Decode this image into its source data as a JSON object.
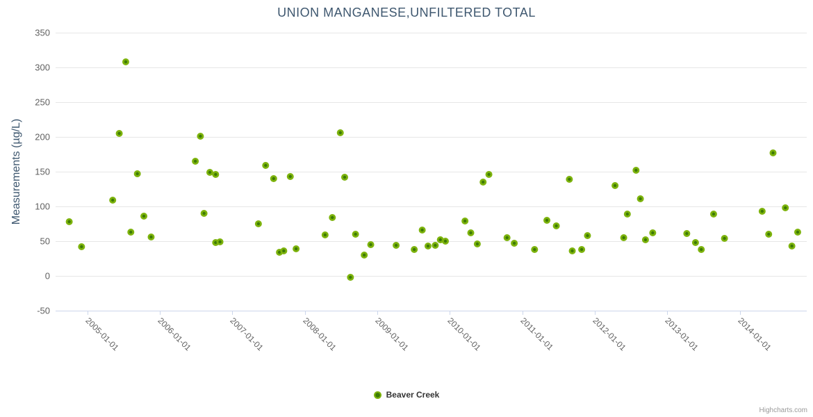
{
  "title": "UNION MANGANESE,UNFILTERED TOTAL",
  "legend": {
    "series_label": "Beaver Creek"
  },
  "credits": "Highcharts.com",
  "colors": {
    "marker_ring": "#7db30d",
    "marker_core": "#3c7a04",
    "title_text": "#3E576F",
    "axis_line": "#ccd6eb",
    "grid_line": "#e6e6e6",
    "tick_label": "#606060"
  },
  "chart_data": {
    "type": "scatter",
    "title": "UNION MANGANESE,UNFILTERED TOTAL",
    "xlabel": "",
    "ylabel": "Measurements (µg/L)",
    "ylim": [
      -50,
      350
    ],
    "y_ticks": [
      350,
      300,
      250,
      200,
      150,
      100,
      50,
      0,
      -50
    ],
    "x_ticks": [
      {
        "year": 2005,
        "label": "2005-01-01"
      },
      {
        "year": 2006,
        "label": "2006-01-01"
      },
      {
        "year": 2007,
        "label": "2007-01-01"
      },
      {
        "year": 2008,
        "label": "2008-01-01"
      },
      {
        "year": 2009,
        "label": "2009-01-01"
      },
      {
        "year": 2010,
        "label": "2010-01-01"
      },
      {
        "year": 2011,
        "label": "2011-01-01"
      },
      {
        "year": 2012,
        "label": "2012-01-01"
      },
      {
        "year": 2013,
        "label": "2013-01-01"
      },
      {
        "year": 2014,
        "label": "2014-01-01"
      }
    ],
    "xlim_decimal_years": [
      2004.562,
      2014.925
    ],
    "grid": "horizontal",
    "legend_position": "bottom-center",
    "series": [
      {
        "name": "Beaver Creek",
        "color": "#7db30d",
        "marker_core_color": "#3c7a04",
        "points": [
          [
            2004.75,
            78
          ],
          [
            2004.92,
            42
          ],
          [
            2005.35,
            109
          ],
          [
            2005.44,
            205
          ],
          [
            2005.53,
            308
          ],
          [
            2005.6,
            63
          ],
          [
            2005.69,
            147
          ],
          [
            2005.78,
            86
          ],
          [
            2005.88,
            56
          ],
          [
            2006.49,
            165
          ],
          [
            2006.56,
            201
          ],
          [
            2006.61,
            90
          ],
          [
            2006.69,
            149
          ],
          [
            2006.77,
            146
          ],
          [
            2006.77,
            48
          ],
          [
            2006.83,
            49
          ],
          [
            2007.36,
            75
          ],
          [
            2007.46,
            159
          ],
          [
            2007.57,
            140
          ],
          [
            2007.65,
            34
          ],
          [
            2007.71,
            36
          ],
          [
            2007.8,
            143
          ],
          [
            2007.88,
            39
          ],
          [
            2008.28,
            59
          ],
          [
            2008.38,
            84
          ],
          [
            2008.49,
            206
          ],
          [
            2008.55,
            142
          ],
          [
            2008.63,
            -2
          ],
          [
            2008.7,
            60
          ],
          [
            2008.82,
            30
          ],
          [
            2008.91,
            45
          ],
          [
            2009.26,
            44
          ],
          [
            2009.51,
            38
          ],
          [
            2009.62,
            66
          ],
          [
            2009.7,
            43
          ],
          [
            2009.8,
            44
          ],
          [
            2009.87,
            52
          ],
          [
            2009.94,
            50
          ],
          [
            2010.21,
            79
          ],
          [
            2010.29,
            62
          ],
          [
            2010.38,
            46
          ],
          [
            2010.46,
            135
          ],
          [
            2010.54,
            146
          ],
          [
            2010.79,
            55
          ],
          [
            2010.89,
            47
          ],
          [
            2011.17,
            38
          ],
          [
            2011.34,
            80
          ],
          [
            2011.47,
            72
          ],
          [
            2011.65,
            139
          ],
          [
            2011.69,
            36
          ],
          [
            2011.82,
            38
          ],
          [
            2011.9,
            58
          ],
          [
            2012.28,
            130
          ],
          [
            2012.4,
            55
          ],
          [
            2012.45,
            89
          ],
          [
            2012.57,
            152
          ],
          [
            2012.63,
            111
          ],
          [
            2012.7,
            52
          ],
          [
            2012.8,
            62
          ],
          [
            2013.27,
            61
          ],
          [
            2013.39,
            48
          ],
          [
            2013.47,
            38
          ],
          [
            2013.64,
            89
          ],
          [
            2013.79,
            54
          ],
          [
            2014.31,
            93
          ],
          [
            2014.4,
            60
          ],
          [
            2014.46,
            177
          ],
          [
            2014.63,
            98
          ],
          [
            2014.72,
            43
          ],
          [
            2014.8,
            63
          ]
        ]
      }
    ]
  }
}
